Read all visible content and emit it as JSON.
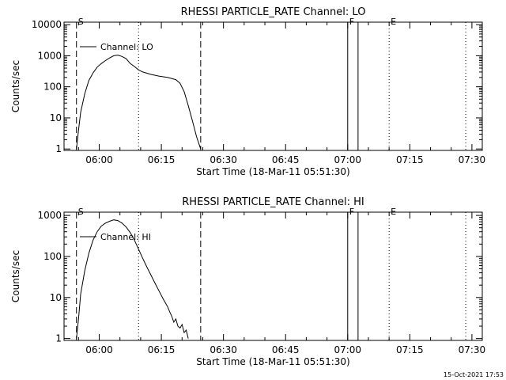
{
  "footer": {
    "timestamp": "15-Oct-2021 17:53"
  },
  "chart_data": [
    {
      "type": "line",
      "title": "RHESSI PARTICLE_RATE Channel: LO",
      "xlabel": "Start Time (18-Mar-11 05:51:30)",
      "ylabel": "Counts/sec",
      "y_scale": "log",
      "ylim": [
        0.9,
        12000
      ],
      "xlim": [
        "05:51:30",
        "07:32:30"
      ],
      "x_ticks": [
        "06:00",
        "06:15",
        "06:30",
        "06:45",
        "07:00",
        "07:15",
        "07:30"
      ],
      "y_ticks": [
        "1",
        "10",
        "100",
        "1000",
        "10000"
      ],
      "legend": {
        "position": "top-left",
        "label": "Channel: LO"
      },
      "markers": [
        {
          "time": "05:54:30",
          "label": "S",
          "style": "dashed"
        },
        {
          "time": "06:09:30",
          "label": "",
          "style": "dotted"
        },
        {
          "time": "06:24:30",
          "label": "",
          "style": "dashed"
        },
        {
          "time": "07:00:00",
          "label": "F",
          "style": "solid"
        },
        {
          "time": "07:02:30",
          "label": "",
          "style": "solid"
        },
        {
          "time": "07:10:00",
          "label": "E",
          "style": "dotted"
        },
        {
          "time": "07:28:30",
          "label": "",
          "style": "dotted"
        }
      ],
      "series": [
        {
          "x": [
            "05:54:30",
            "05:55:00",
            "05:55:30",
            "05:56:30",
            "05:57:30",
            "05:58:30",
            "05:59:30",
            "06:00:30",
            "06:01:30",
            "06:02:30",
            "06:03:30",
            "06:04:30",
            "06:05:30",
            "06:06:30",
            "06:07:30",
            "06:08:30",
            "06:09:30",
            "06:10:30",
            "06:12:30",
            "06:14:30",
            "06:16:30",
            "06:18:30",
            "06:19:30",
            "06:20:30",
            "06:21:30",
            "06:22:30",
            "06:23:30",
            "06:24:30"
          ],
          "y": [
            1,
            4,
            15,
            60,
            160,
            280,
            430,
            560,
            700,
            850,
            1000,
            1050,
            950,
            800,
            560,
            450,
            350,
            300,
            250,
            220,
            200,
            170,
            130,
            70,
            25,
            8,
            2.5,
            1
          ]
        }
      ]
    },
    {
      "type": "line",
      "title": "RHESSI PARTICLE_RATE Channel: HI",
      "xlabel": "Start Time (18-Mar-11 05:51:30)",
      "ylabel": "Counts/sec",
      "y_scale": "log",
      "ylim": [
        0.9,
        1200
      ],
      "xlim": [
        "05:51:30",
        "07:32:30"
      ],
      "x_ticks": [
        "06:00",
        "06:15",
        "06:30",
        "06:45",
        "07:00",
        "07:15",
        "07:30"
      ],
      "y_ticks": [
        "1",
        "10",
        "100",
        "1000"
      ],
      "legend": {
        "position": "top-left",
        "label": "Channel: HI"
      },
      "markers": [
        {
          "time": "05:54:30",
          "label": "S",
          "style": "dashed"
        },
        {
          "time": "06:09:30",
          "label": "",
          "style": "dotted"
        },
        {
          "time": "06:24:30",
          "label": "",
          "style": "dashed"
        },
        {
          "time": "07:00:00",
          "label": "F",
          "style": "solid"
        },
        {
          "time": "07:02:30",
          "label": "",
          "style": "solid"
        },
        {
          "time": "07:10:00",
          "label": "E",
          "style": "dotted"
        },
        {
          "time": "07:28:30",
          "label": "",
          "style": "dotted"
        }
      ],
      "series": [
        {
          "x": [
            "05:54:30",
            "05:55:00",
            "05:55:30",
            "05:56:30",
            "05:57:30",
            "05:58:30",
            "05:59:30",
            "06:00:30",
            "06:01:30",
            "06:02:30",
            "06:03:30",
            "06:04:30",
            "06:05:30",
            "06:06:30",
            "06:07:30",
            "06:08:30",
            "06:09:30",
            "06:10:30",
            "06:11:30",
            "06:12:30",
            "06:13:30",
            "06:14:30",
            "06:15:30",
            "06:16:30",
            "06:17:00",
            "06:17:30",
            "06:18:00",
            "06:18:30",
            "06:19:00",
            "06:19:30",
            "06:20:00",
            "06:20:30",
            "06:21:00",
            "06:21:30"
          ],
          "y": [
            1,
            3,
            12,
            45,
            120,
            250,
            400,
            550,
            650,
            720,
            780,
            750,
            650,
            520,
            380,
            250,
            150,
            90,
            55,
            35,
            22,
            14,
            9,
            6,
            4.5,
            3.5,
            2.5,
            3,
            2,
            1.8,
            2.2,
            1.4,
            1.6,
            1
          ]
        }
      ]
    }
  ]
}
